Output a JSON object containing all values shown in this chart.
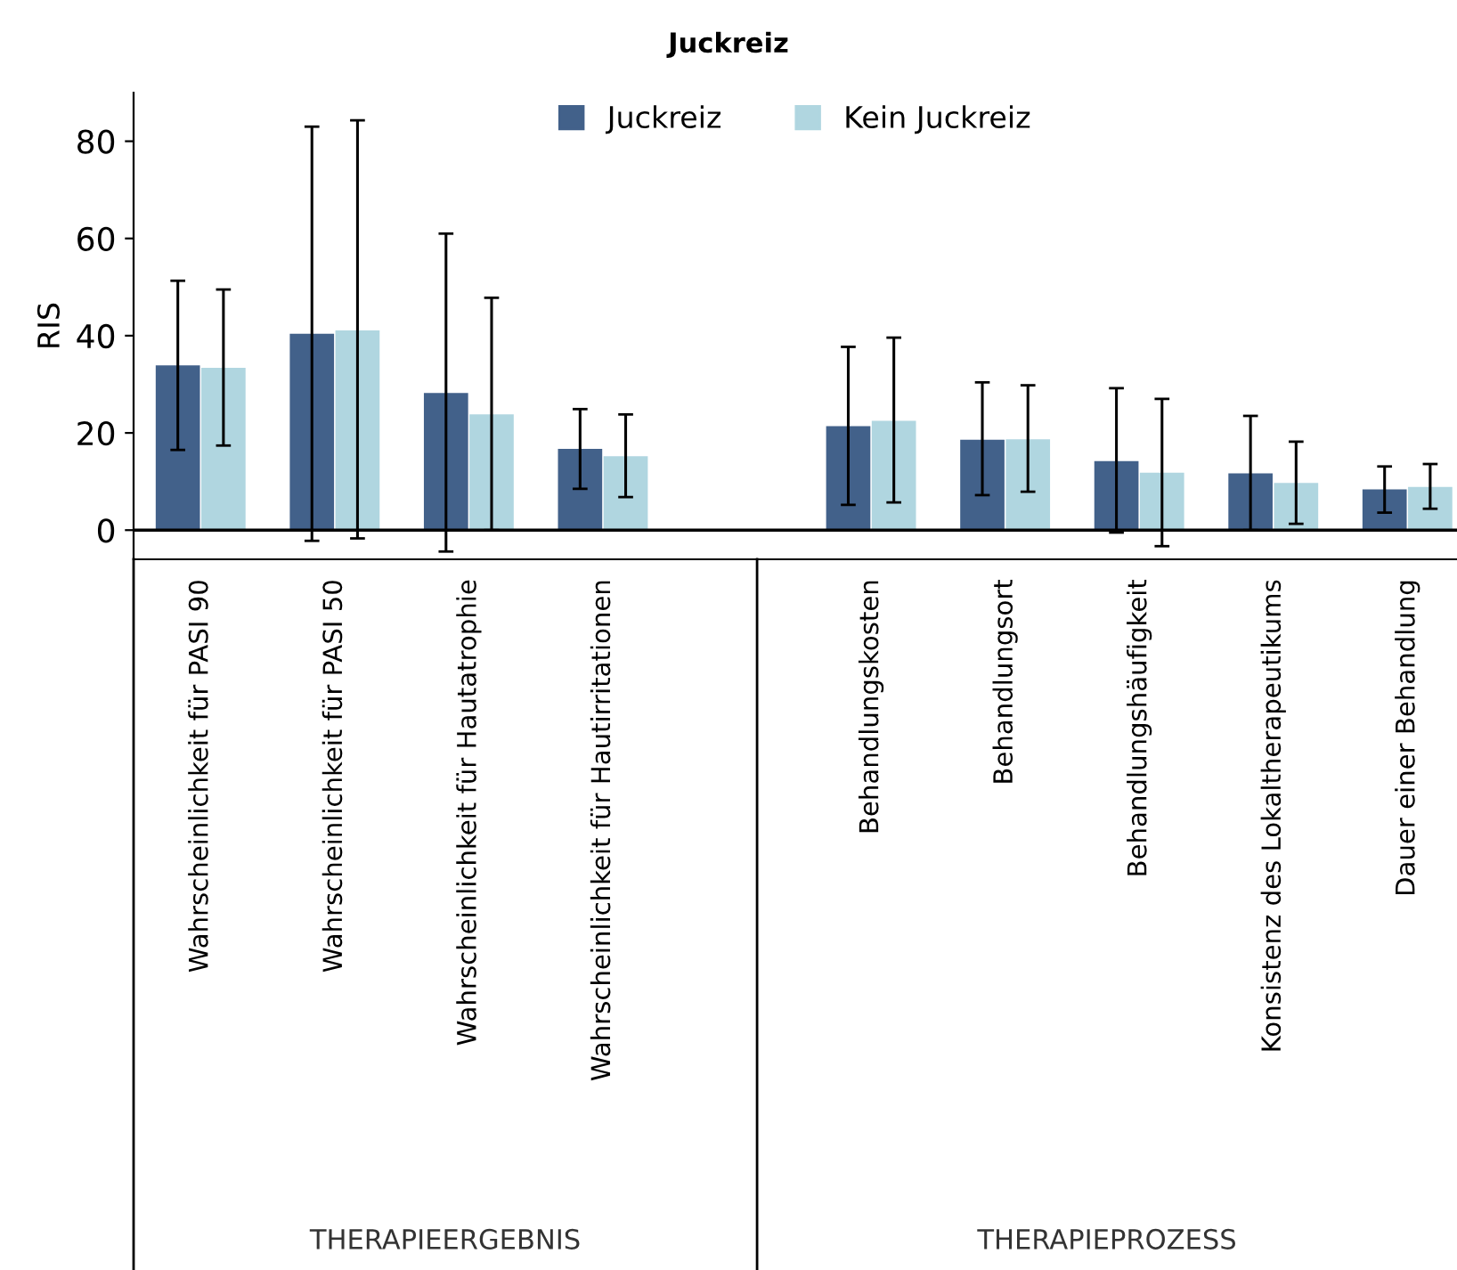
{
  "chart_data": {
    "type": "bar",
    "title": "Juckreiz",
    "ylabel": "RIS",
    "categories": [
      "Wahrscheinlichkeit für PASI 90",
      "Wahrscheinlichkeit für PASI 50",
      "Wahrscheinlichkeit für Hautatrophie",
      "Wahrscheinlichkeit für Hautirritationen",
      null,
      "Behandlungskosten",
      "Behandlungsort",
      "Behandlungshäufigkeit",
      "Konsistenz des Lokaltherapeutikums",
      "Dauer einer Behandlung"
    ],
    "series": [
      {
        "name": "Juckreiz",
        "color": "#42618a",
        "values": [
          33.9,
          40.4,
          28.2,
          16.7,
          null,
          21.4,
          18.6,
          14.2,
          11.7,
          8.4
        ],
        "errors": [
          [
            16.5,
            51.3
          ],
          [
            -2.2,
            83.0
          ],
          [
            -4.4,
            61.0
          ],
          [
            8.5,
            24.9
          ],
          null,
          [
            5.2,
            37.7
          ],
          [
            7.2,
            30.4
          ],
          [
            -0.5,
            29.2
          ],
          [
            0,
            23.5
          ],
          [
            3.6,
            13.1
          ]
        ]
      },
      {
        "name": "Kein Juckreiz",
        "color": "#b0d6e0",
        "values": [
          33.4,
          41.1,
          23.8,
          15.2,
          null,
          22.5,
          18.7,
          11.8,
          9.7,
          8.9
        ],
        "errors": [
          [
            17.4,
            49.5
          ],
          [
            -1.7,
            84.3
          ],
          [
            0,
            47.8
          ],
          [
            6.8,
            23.8
          ],
          null,
          [
            5.7,
            39.6
          ],
          [
            7.9,
            29.8
          ],
          [
            -3.3,
            27.0
          ],
          [
            1.3,
            18.2
          ],
          [
            4.4,
            13.6
          ]
        ]
      }
    ],
    "ylim": [
      -6,
      90
    ],
    "yticks": [
      0,
      20,
      40,
      60,
      80
    ],
    "ref_lines": [
      {
        "axis": "y",
        "value": 0,
        "label": null,
        "color": "#000000"
      }
    ],
    "annotations": [
      "THERAPIEERGEBNIS",
      "THERAPIEPROZESS"
    ],
    "legend": "top",
    "grid": false
  }
}
